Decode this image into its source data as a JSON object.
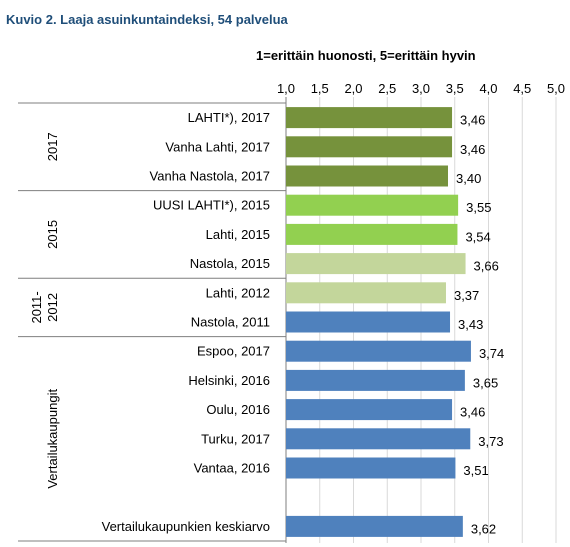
{
  "title": "Kuvio 2. Laaja asuinkuntaindeksi, 54 palvelua",
  "scale_note": "1=erittäin huonosti, 5=erittäin hyvin",
  "chart_data": {
    "type": "bar",
    "orientation": "horizontal",
    "title": "Kuvio 2. Laaja asuinkuntaindeksi, 54 palvelua",
    "subtitle": "1=erittäin huonosti, 5=erittäin hyvin",
    "xlim": [
      1.0,
      5.0
    ],
    "ticks": [
      "1,0",
      "1,5",
      "2,0",
      "2,5",
      "3,0",
      "3,5",
      "4,0",
      "4,5",
      "5,0"
    ],
    "grid": "vertical",
    "colors": {
      "olive": "#76923c",
      "lime": "#92d050",
      "pale": "#c3d69b",
      "blue": "#4f81bd"
    },
    "categories": [
      "LAHTI*), 2017",
      "Vanha Lahti, 2017",
      "Vanha Nastola, 2017",
      "UUSI LAHTI*), 2015",
      "Lahti, 2015",
      "Nastola, 2015",
      "Lahti, 2012",
      "Nastola, 2011",
      "Espoo, 2017",
      "Helsinki, 2016",
      "Oulu, 2016",
      "Turku, 2017",
      "Vantaa, 2016",
      "",
      "Vertailukaupunkien keskiarvo"
    ],
    "values": [
      3.46,
      3.46,
      3.4,
      3.55,
      3.54,
      3.66,
      3.37,
      3.43,
      3.74,
      3.65,
      3.46,
      3.73,
      3.51,
      null,
      3.62
    ],
    "value_labels": [
      "3,46",
      "3,46",
      "3,40",
      "3,55",
      "3,54",
      "3,66",
      "3,37",
      "3,43",
      "3,74",
      "3,65",
      "3,46",
      "3,73",
      "3,51",
      "",
      "3,62"
    ],
    "bar_colors": [
      "olive",
      "olive",
      "olive",
      "lime",
      "lime",
      "pale",
      "pale",
      "blue",
      "blue",
      "blue",
      "blue",
      "blue",
      "blue",
      "",
      "blue"
    ],
    "groups": [
      {
        "label": "2017",
        "rows": [
          0,
          2
        ]
      },
      {
        "label": "2015",
        "rows": [
          3,
          5
        ]
      },
      {
        "label": "2011-\n2012",
        "rows": [
          6,
          7
        ]
      },
      {
        "label": "Vertailukaupungit",
        "rows": [
          8,
          14
        ]
      }
    ]
  }
}
